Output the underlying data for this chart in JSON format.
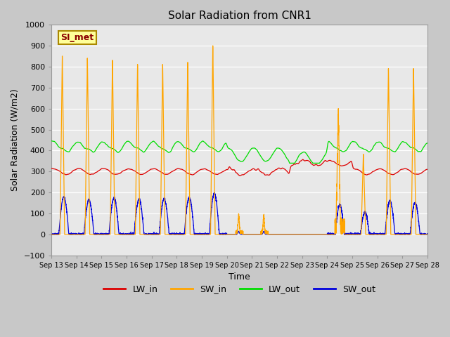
{
  "title": "Solar Radiation from CNR1",
  "xlabel": "Time",
  "ylabel": "Solar Radiation (W/m2)",
  "ylim": [
    -100,
    1000
  ],
  "yticks": [
    -100,
    0,
    100,
    200,
    300,
    400,
    500,
    600,
    700,
    800,
    900,
    1000
  ],
  "plot_bg_color": "#e8e8e8",
  "fig_bg_color": "#c8c8c8",
  "colors": {
    "LW_in": "#dd0000",
    "SW_in": "#ffa500",
    "LW_out": "#00dd00",
    "SW_out": "#0000dd"
  },
  "legend_label": "SI_met",
  "legend_box_facecolor": "#ffff99",
  "legend_box_edgecolor": "#aa8800",
  "start_day": 13,
  "n_days": 15,
  "points_per_day": 288
}
